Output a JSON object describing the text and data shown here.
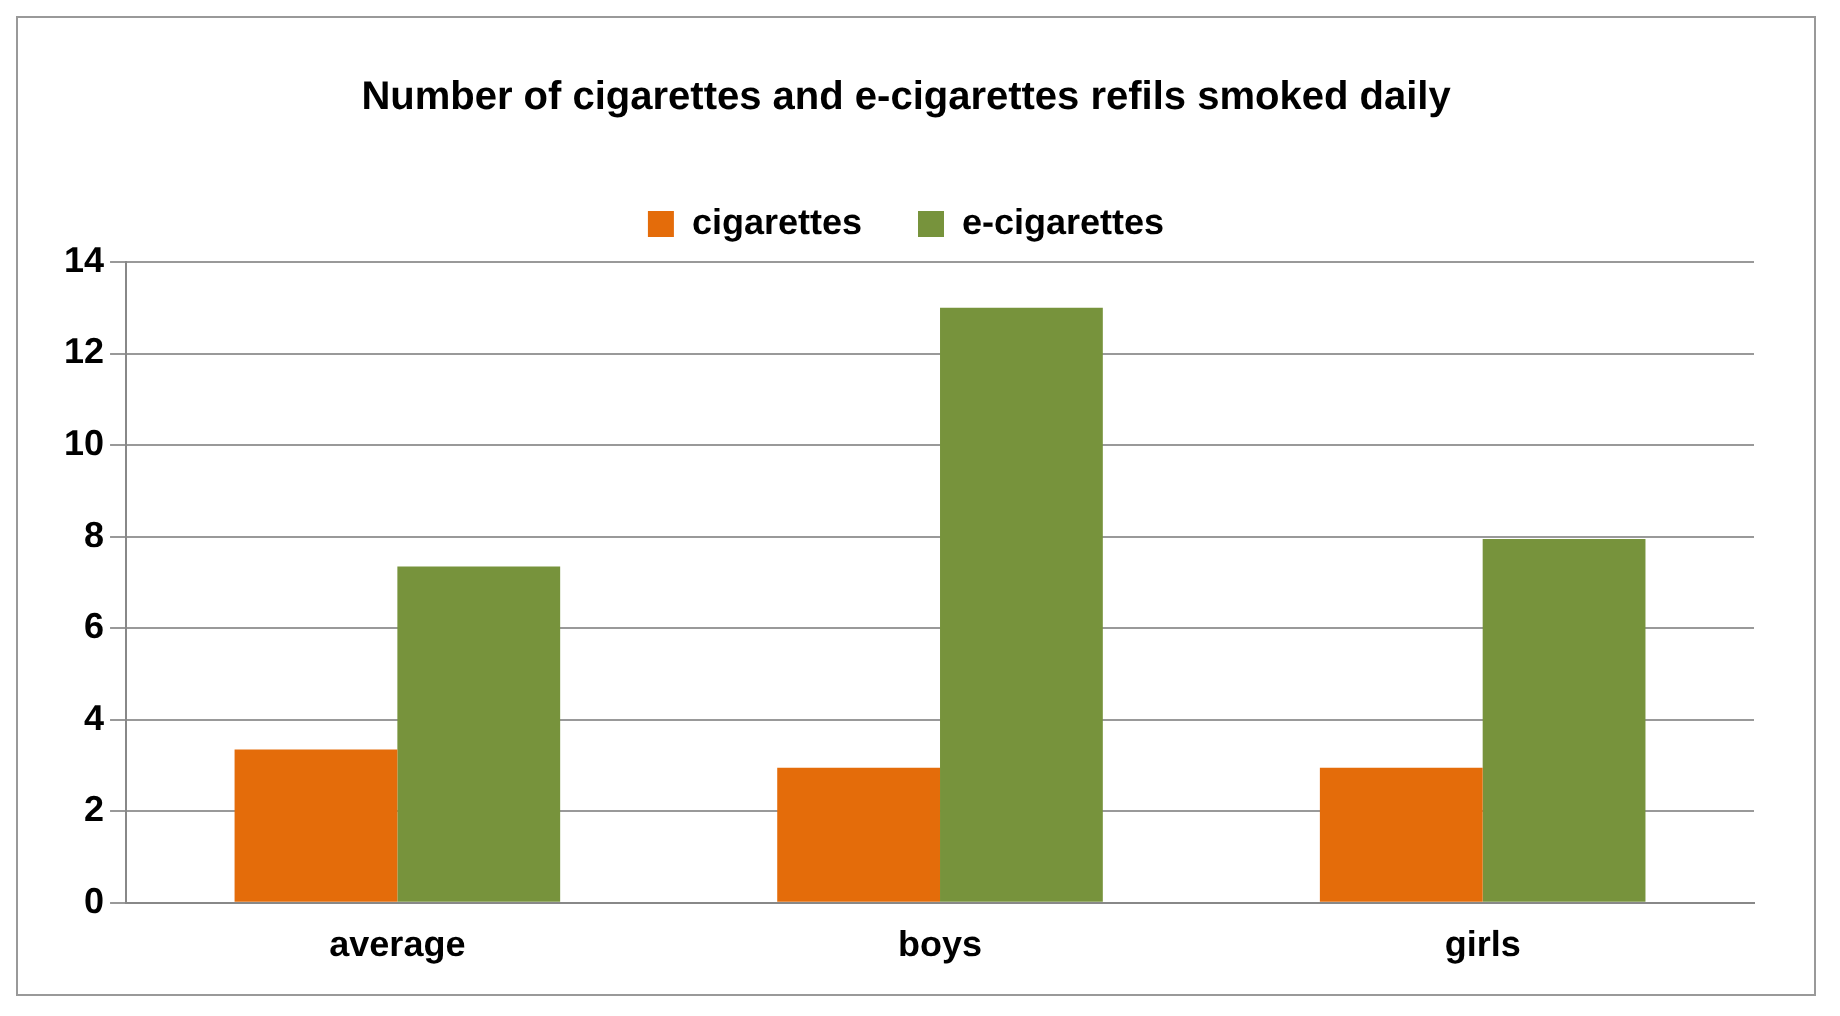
{
  "chart_data": {
    "type": "bar",
    "title": "Number of cigarettes and e-cigarettes refils smoked daily",
    "categories": [
      "average",
      "boys",
      "girls"
    ],
    "series": [
      {
        "name": "cigarettes",
        "color": "#e46c0a",
        "values": [
          3.35,
          2.95,
          2.95
        ]
      },
      {
        "name": "e-cigarettes",
        "color": "#77933c",
        "values": [
          7.35,
          13,
          7.95
        ]
      }
    ],
    "ylim": [
      0,
      14
    ],
    "yticks": [
      0,
      2,
      4,
      6,
      8,
      10,
      12,
      14
    ],
    "grid": "y",
    "legend": "top"
  }
}
